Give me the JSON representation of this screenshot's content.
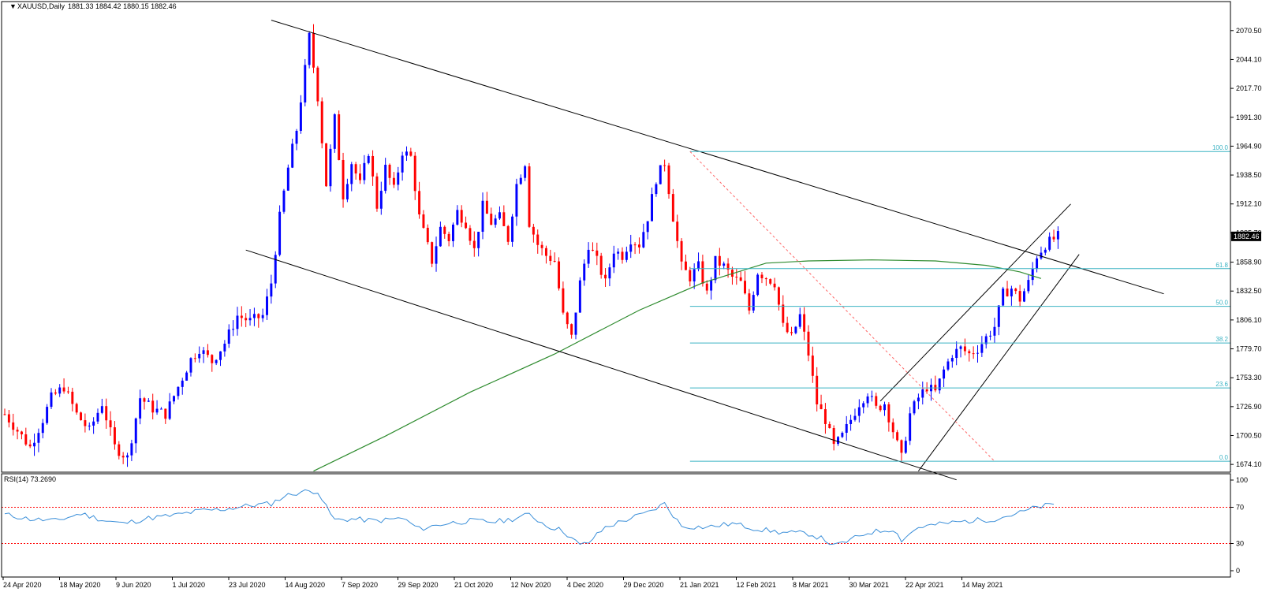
{
  "header": {
    "symbol_label": "XAUUSD,Daily",
    "ohlc": "1881.33 1884.42 1880.15 1882.46"
  },
  "chart_data": {
    "type": "candlestick",
    "symbol": "XAUUSD",
    "timeframe": "Daily",
    "last_ohlc": {
      "open": 1881.33,
      "high": 1884.42,
      "low": 1880.15,
      "close": 1882.46
    },
    "current_price_label": "1882.46",
    "y_ticks": [
      "2070.50",
      "2044.10",
      "2017.70",
      "1991.30",
      "1964.90",
      "1938.50",
      "1912.10",
      "1885.70",
      "1858.90",
      "1832.50",
      "1806.10",
      "1779.70",
      "1753.30",
      "1726.90",
      "1700.50",
      "1674.10"
    ],
    "y_range": [
      1667,
      2097
    ],
    "x_ticks": [
      "24 Apr 2020",
      "18 May 2020",
      "9 Jun 2020",
      "1 Jul 2020",
      "23 Jul 2020",
      "14 Aug 2020",
      "7 Sep 2020",
      "29 Sep 2020",
      "21 Oct 2020",
      "12 Nov 2020",
      "4 Dec 2020",
      "29 Dec 2020",
      "21 Jan 2021",
      "12 Feb 2021",
      "8 Mar 2021",
      "30 Mar 2021",
      "22 Apr 2021",
      "14 May 2021"
    ],
    "colors": {
      "bull": "#0000ff",
      "bear": "#ff0000",
      "ma": "#2e8b2e",
      "rsi": "#3b8fd9",
      "fib": "#3bb3c3",
      "fib_diag": "#ff6666",
      "level": "#ff0000"
    },
    "price_path": [
      [
        0,
        1720
      ],
      [
        3,
        1705
      ],
      [
        6,
        1690
      ],
      [
        9,
        1715
      ],
      [
        11,
        1735
      ],
      [
        14,
        1745
      ],
      [
        17,
        1720
      ],
      [
        20,
        1705
      ],
      [
        23,
        1730
      ],
      [
        26,
        1690
      ],
      [
        29,
        1680
      ],
      [
        32,
        1735
      ],
      [
        35,
        1725
      ],
      [
        38,
        1720
      ],
      [
        41,
        1745
      ],
      [
        44,
        1770
      ],
      [
        46,
        1780
      ],
      [
        49,
        1768
      ],
      [
        52,
        1785
      ],
      [
        55,
        1810
      ],
      [
        58,
        1805
      ],
      [
        61,
        1810
      ],
      [
        63,
        1840
      ],
      [
        65,
        1900
      ],
      [
        67,
        1945
      ],
      [
        69,
        1980
      ],
      [
        71,
        2035
      ],
      [
        72,
        2065
      ],
      [
        74,
        2010
      ],
      [
        76,
        1930
      ],
      [
        78,
        1990
      ],
      [
        80,
        1920
      ],
      [
        82,
        1950
      ],
      [
        84,
        1930
      ],
      [
        86,
        1960
      ],
      [
        88,
        1910
      ],
      [
        90,
        1945
      ],
      [
        92,
        1925
      ],
      [
        94,
        1960
      ],
      [
        96,
        1955
      ],
      [
        98,
        1900
      ],
      [
        101,
        1860
      ],
      [
        103,
        1890
      ],
      [
        105,
        1880
      ],
      [
        107,
        1905
      ],
      [
        109,
        1895
      ],
      [
        111,
        1870
      ],
      [
        113,
        1910
      ],
      [
        115,
        1895
      ],
      [
        117,
        1900
      ],
      [
        119,
        1880
      ],
      [
        121,
        1930
      ],
      [
        123,
        1950
      ],
      [
        124,
        1895
      ],
      [
        126,
        1875
      ],
      [
        128,
        1865
      ],
      [
        130,
        1860
      ],
      [
        132,
        1810
      ],
      [
        134,
        1790
      ],
      [
        136,
        1840
      ],
      [
        138,
        1875
      ],
      [
        140,
        1860
      ],
      [
        142,
        1840
      ],
      [
        144,
        1870
      ],
      [
        146,
        1865
      ],
      [
        148,
        1880
      ],
      [
        150,
        1875
      ],
      [
        152,
        1900
      ],
      [
        154,
        1935
      ],
      [
        156,
        1950
      ],
      [
        158,
        1900
      ],
      [
        160,
        1855
      ],
      [
        162,
        1845
      ],
      [
        164,
        1855
      ],
      [
        166,
        1830
      ],
      [
        168,
        1860
      ],
      [
        170,
        1855
      ],
      [
        172,
        1845
      ],
      [
        174,
        1840
      ],
      [
        176,
        1815
      ],
      [
        178,
        1850
      ],
      [
        180,
        1845
      ],
      [
        182,
        1840
      ],
      [
        184,
        1800
      ],
      [
        186,
        1790
      ],
      [
        188,
        1810
      ],
      [
        190,
        1775
      ],
      [
        192,
        1730
      ],
      [
        194,
        1715
      ],
      [
        196,
        1690
      ],
      [
        198,
        1700
      ],
      [
        200,
        1715
      ],
      [
        202,
        1730
      ],
      [
        204,
        1740
      ],
      [
        206,
        1725
      ],
      [
        208,
        1730
      ],
      [
        210,
        1705
      ],
      [
        212,
        1680
      ],
      [
        214,
        1720
      ],
      [
        216,
        1735
      ],
      [
        218,
        1745
      ],
      [
        220,
        1740
      ],
      [
        222,
        1760
      ],
      [
        224,
        1775
      ],
      [
        226,
        1780
      ],
      [
        228,
        1775
      ],
      [
        230,
        1780
      ],
      [
        232,
        1790
      ],
      [
        234,
        1800
      ],
      [
        236,
        1830
      ],
      [
        238,
        1835
      ],
      [
        240,
        1825
      ],
      [
        242,
        1840
      ],
      [
        244,
        1865
      ],
      [
        246,
        1875
      ],
      [
        248,
        1880
      ],
      [
        249,
        1882.46
      ]
    ],
    "ma200_path": [
      [
        73,
        1668
      ],
      [
        90,
        1700
      ],
      [
        110,
        1740
      ],
      [
        130,
        1775
      ],
      [
        150,
        1815
      ],
      [
        165,
        1840
      ],
      [
        180,
        1858
      ],
      [
        190,
        1860
      ],
      [
        205,
        1861
      ],
      [
        220,
        1860
      ],
      [
        232,
        1856
      ],
      [
        240,
        1850
      ],
      [
        245,
        1844
      ]
    ],
    "channel_upper": [
      [
        63,
        2080
      ],
      [
        274,
        1830
      ]
    ],
    "channel_lower": [
      [
        57,
        1870
      ],
      [
        225,
        1660
      ]
    ],
    "rising_channel_left": [
      [
        207,
        1732
      ],
      [
        252,
        1912
      ]
    ],
    "rising_channel_right": [
      [
        216,
        1668
      ],
      [
        254,
        1866
      ]
    ],
    "fib_retracement": {
      "high": 1960,
      "low": 1677,
      "start_index": 162,
      "levels": [
        {
          "label": "100.0",
          "price": 1960
        },
        {
          "label": "61.8",
          "price": 1853
        },
        {
          "label": "50.0",
          "price": 1818.5
        },
        {
          "label": "38.2",
          "price": 1785
        },
        {
          "label": "23.6",
          "price": 1744
        },
        {
          "label": "0.0",
          "price": 1677
        }
      ]
    },
    "rsi": {
      "label": "RSI(14) 73.2690",
      "value": 73.269,
      "y_ticks": [
        "100",
        "70",
        "30",
        "0"
      ],
      "levels": [
        70,
        30
      ],
      "path": [
        [
          0,
          62
        ],
        [
          6,
          57
        ],
        [
          12,
          55
        ],
        [
          18,
          63
        ],
        [
          24,
          55
        ],
        [
          28,
          52
        ],
        [
          34,
          58
        ],
        [
          40,
          61
        ],
        [
          46,
          66
        ],
        [
          52,
          68
        ],
        [
          58,
          72
        ],
        [
          63,
          74
        ],
        [
          66,
          82
        ],
        [
          70,
          87
        ],
        [
          74,
          88
        ],
        [
          76,
          70
        ],
        [
          78,
          56
        ],
        [
          82,
          57
        ],
        [
          88,
          55
        ],
        [
          94,
          58
        ],
        [
          98,
          46
        ],
        [
          104,
          52
        ],
        [
          110,
          55
        ],
        [
          116,
          54
        ],
        [
          120,
          57
        ],
        [
          124,
          62
        ],
        [
          128,
          50
        ],
        [
          132,
          44
        ],
        [
          136,
          28
        ],
        [
          138,
          31
        ],
        [
          142,
          48
        ],
        [
          148,
          58
        ],
        [
          152,
          64
        ],
        [
          156,
          74
        ],
        [
          160,
          49
        ],
        [
          166,
          48
        ],
        [
          172,
          52
        ],
        [
          178,
          46
        ],
        [
          184,
          42
        ],
        [
          190,
          41
        ],
        [
          194,
          34
        ],
        [
          196,
          27
        ],
        [
          200,
          34
        ],
        [
          204,
          42
        ],
        [
          210,
          46
        ],
        [
          212,
          34
        ],
        [
          216,
          48
        ],
        [
          222,
          52
        ],
        [
          228,
          55
        ],
        [
          234,
          57
        ],
        [
          240,
          64
        ],
        [
          244,
          70
        ],
        [
          248,
          73.27
        ]
      ]
    },
    "x_index_range": [
      0,
      300
    ]
  }
}
